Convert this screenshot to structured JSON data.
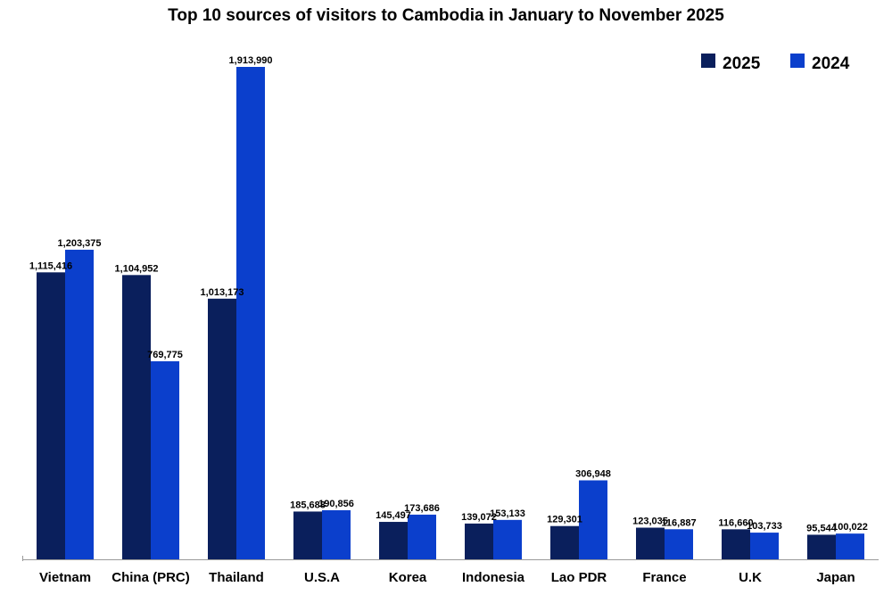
{
  "chart_data": {
    "type": "bar",
    "title": "Top 10 sources of visitors to Cambodia in January to November 2025",
    "categories": [
      "Vietnam",
      "China (PRC)",
      "Thailand",
      "U.S.A",
      "Korea",
      "Indonesia",
      "Lao PDR",
      "France",
      "U.K",
      "Japan"
    ],
    "series": [
      {
        "name": "2025",
        "color": "#0a1f5c",
        "values": [
          1115416,
          1104952,
          1013173,
          185688,
          145497,
          139072,
          129301,
          123035,
          116660,
          95544
        ],
        "labels": [
          "1,115,416",
          "1,104,952",
          "1,013,173",
          "185,688",
          "145,497",
          "139,072",
          "129,301",
          "123,035",
          "116,660",
          "95,544"
        ]
      },
      {
        "name": "2024",
        "color": "#0b3fcc",
        "values": [
          1203375,
          769775,
          1913990,
          190856,
          173686,
          153133,
          306948,
          116887,
          103733,
          100022
        ],
        "labels": [
          "1,203,375",
          "769,775",
          "1,913,990",
          "190,856",
          "173,686",
          "153,133",
          "306,948",
          "116,887",
          "103,733",
          "100,022"
        ]
      }
    ],
    "legend_position": "top-right",
    "grid": false,
    "ylim": [
      0,
      1913990
    ]
  }
}
